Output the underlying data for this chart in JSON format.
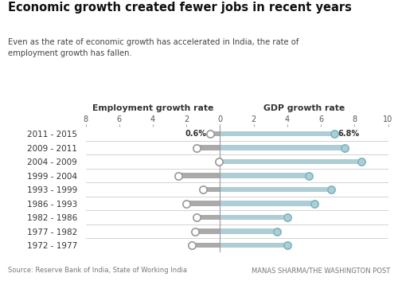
{
  "title": "Economic growth created fewer jobs in recent years",
  "subtitle": "Even as the rate of economic growth has accelerated in India, the rate of\nemployment growth has fallen.",
  "source": "Source: Reserve Bank of India, State of Working India",
  "credit": "MANAS SHARMA/THE WASHINGTON POST",
  "left_label": "Employment growth rate",
  "right_label": "GDP growth rate",
  "periods": [
    "2011 - 2015",
    "2009 - 2011",
    "2004 - 2009",
    "1999 - 2004",
    "1993 - 1999",
    "1986 - 1993",
    "1982 - 1986",
    "1977 - 1982",
    "1972 - 1977"
  ],
  "emp_growth": [
    0.6,
    1.4,
    0.05,
    2.5,
    1.0,
    2.0,
    1.4,
    1.5,
    1.7
  ],
  "gdp_growth": [
    6.8,
    7.4,
    8.4,
    5.3,
    6.6,
    5.6,
    4.0,
    3.4,
    4.0
  ],
  "top_emp_label": "0.6%",
  "top_gdp_label": "6.8%",
  "bar_color_emp": "#aaaaaa",
  "bar_color_gdp": "#aecdd4",
  "circle_color_emp": "#ffffff",
  "circle_color_gdp": "#aecdd4",
  "circle_edge_emp": "#999999",
  "circle_edge_gdp": "#7ab8c2",
  "bg_color": "#ffffff",
  "text_color": "#333333",
  "sep_color": "#cccccc",
  "vline_color": "#999999",
  "left_xlim": 8,
  "right_xlim": 10
}
